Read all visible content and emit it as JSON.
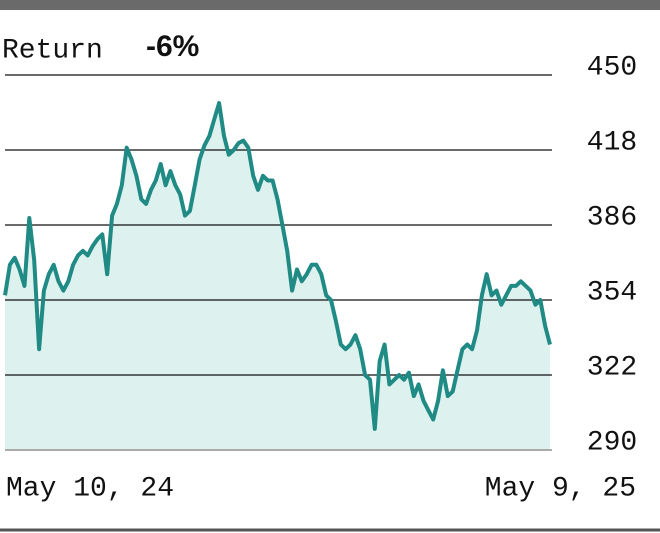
{
  "chart_data": {
    "type": "line",
    "title": "Return",
    "annotation": "-6%",
    "color": "#208a85",
    "fill": "#ddf1ee",
    "categories": [
      "May 10, 24",
      null,
      null,
      null,
      null,
      null,
      null,
      null,
      null,
      null,
      null,
      null,
      null,
      null,
      null,
      null,
      null,
      null,
      null,
      null,
      null,
      null,
      null,
      null,
      null,
      null,
      null,
      null,
      null,
      null,
      null,
      null,
      null,
      null,
      null,
      null,
      null,
      null,
      null,
      null,
      null,
      null,
      null,
      null,
      null,
      null,
      null,
      null,
      null,
      null,
      null,
      null,
      null,
      null,
      null,
      null,
      null,
      null,
      null,
      null,
      null,
      null,
      null,
      null,
      null,
      null,
      null,
      null,
      null,
      null,
      null,
      null,
      null,
      null,
      null,
      null,
      null,
      null,
      null,
      null,
      null,
      null,
      null,
      null,
      null,
      null,
      null,
      null,
      null,
      null,
      null,
      null,
      null,
      null,
      null,
      null,
      null,
      null,
      null,
      null,
      null,
      null,
      null,
      null,
      null,
      null,
      null,
      null,
      null,
      null,
      null,
      null,
      "May 9, 25"
    ],
    "values": [
      356,
      369,
      372,
      367,
      360,
      389,
      371,
      333,
      358,
      365,
      369,
      362,
      358,
      362,
      369,
      373,
      375,
      373,
      377,
      380,
      382,
      365,
      390,
      395,
      403,
      419,
      414,
      407,
      397,
      395,
      401,
      405,
      412,
      403,
      409,
      403,
      399,
      390,
      392,
      403,
      414,
      420,
      424,
      431,
      438,
      424,
      416,
      418,
      421,
      422,
      419,
      407,
      401,
      407,
      405,
      405,
      397,
      386,
      375,
      358,
      367,
      362,
      365,
      369,
      369,
      365,
      356,
      354,
      345,
      335,
      333,
      335,
      339,
      333,
      322,
      320,
      299,
      328,
      335,
      318,
      320,
      322,
      320,
      323,
      313,
      318,
      311,
      307,
      303,
      311,
      324,
      313,
      315,
      324,
      333,
      335,
      333,
      341,
      356,
      365,
      356,
      358,
      352,
      356,
      360,
      360,
      362,
      360,
      358,
      352,
      354,
      343,
      335
    ],
    "ylim": [
      290,
      450
    ],
    "yticks": [
      290,
      322,
      354,
      386,
      418,
      450
    ],
    "grid": true
  }
}
